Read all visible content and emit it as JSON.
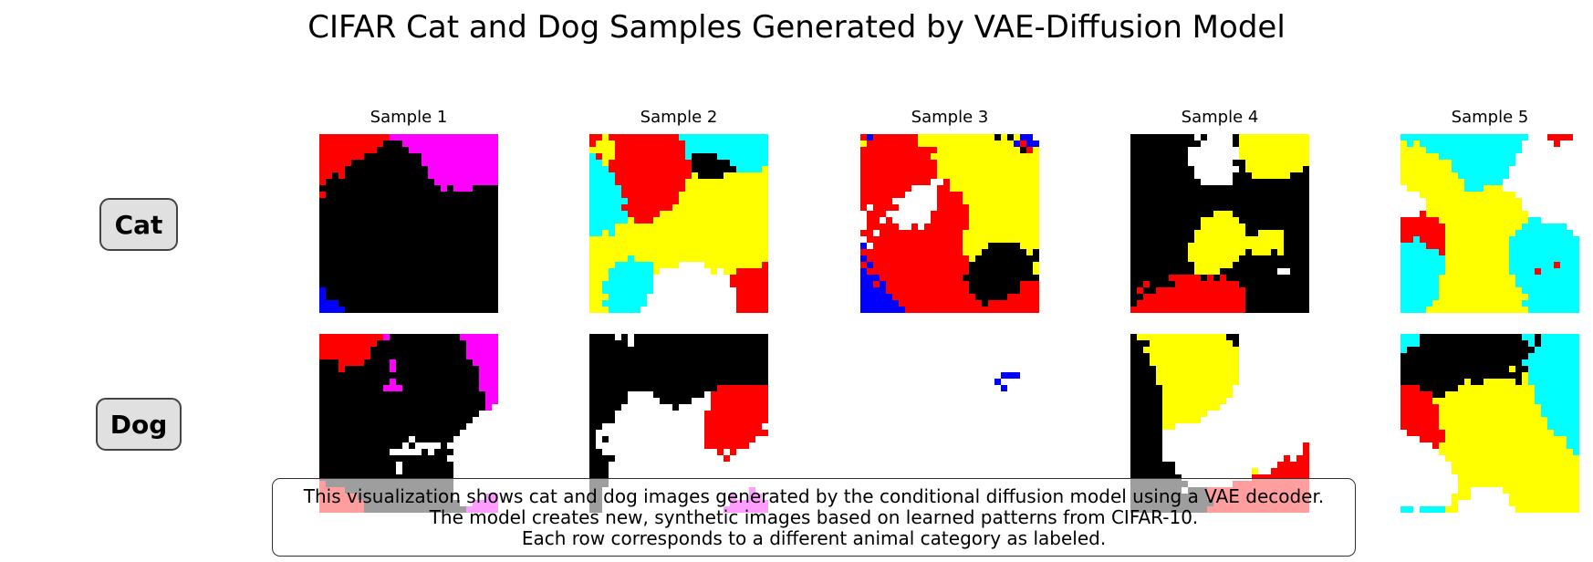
{
  "title": "CIFAR Cat and Dog Samples Generated by VAE-Diffusion Model",
  "rows": [
    "Cat",
    "Dog"
  ],
  "columns": [
    "Sample 1",
    "Sample 2",
    "Sample 3",
    "Sample 4",
    "Sample 5"
  ],
  "caption": {
    "line1": "This visualization shows cat and dog images generated by the conditional diffusion model using a VAE decoder.",
    "line2": "The model creates new, synthetic images based on learned patterns from CIFAR-10.",
    "line3": "Each row corresponds to a different animal category as labeled."
  },
  "palette": [
    "#000000",
    "#ffffff",
    "#ff0000",
    "#ff00ff",
    "#ffff00",
    "#0000ff",
    "#00ffff",
    "#00ff00",
    "#7f0000"
  ],
  "samples": [
    {
      "row": "Cat",
      "column": "Sample 1",
      "dominant_colors": [
        "#000000",
        "#ffffff",
        "#ff0000",
        "#ff00ff",
        "#0000ff"
      ]
    },
    {
      "row": "Cat",
      "column": "Sample 2",
      "dominant_colors": [
        "#000000",
        "#ffffff",
        "#ff0000",
        "#ffff00",
        "#00ffff"
      ]
    },
    {
      "row": "Cat",
      "column": "Sample 3",
      "dominant_colors": [
        "#000000",
        "#ffffff",
        "#ffff00",
        "#ff0000",
        "#0000ff"
      ]
    },
    {
      "row": "Cat",
      "column": "Sample 4",
      "dominant_colors": [
        "#ff0000",
        "#ffffff",
        "#ffff00",
        "#000000"
      ]
    },
    {
      "row": "Cat",
      "column": "Sample 5",
      "dominant_colors": [
        "#000000",
        "#ffffff",
        "#ffff00",
        "#ff0000",
        "#00ffff"
      ]
    },
    {
      "row": "Dog",
      "column": "Sample 1",
      "dominant_colors": [
        "#ff0000",
        "#000000",
        "#ffffff",
        "#ff00ff"
      ]
    },
    {
      "row": "Dog",
      "column": "Sample 2",
      "dominant_colors": [
        "#ffffff",
        "#000000",
        "#ff00ff",
        "#ff0000"
      ]
    },
    {
      "row": "Dog",
      "column": "Sample 3",
      "dominant_colors": [
        "#ffffff",
        "#000000",
        "#ff0000",
        "#0000ff"
      ]
    },
    {
      "row": "Dog",
      "column": "Sample 4",
      "dominant_colors": [
        "#000000",
        "#ffffff",
        "#ff0000",
        "#ffff00"
      ]
    },
    {
      "row": "Dog",
      "column": "Sample 5",
      "dominant_colors": [
        "#000000",
        "#ffffff",
        "#ff0000",
        "#ffff00",
        "#00ffff"
      ]
    }
  ]
}
